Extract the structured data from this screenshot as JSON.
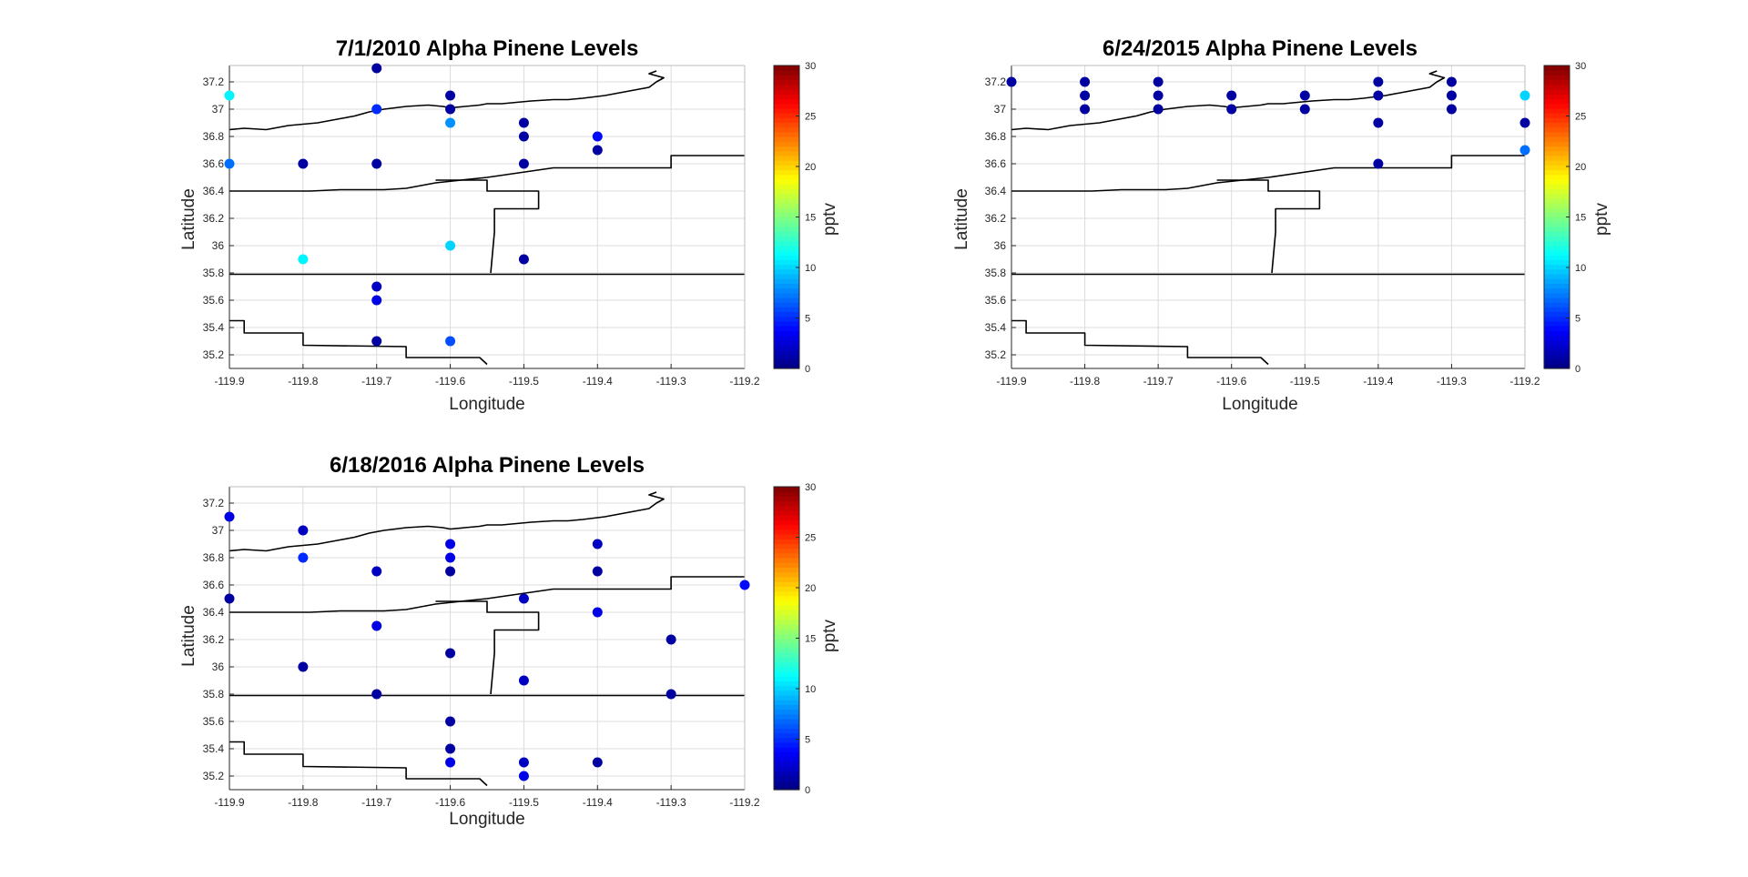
{
  "figure": {
    "background": "#ffffff",
    "colormap": "jet",
    "marker_color_range": [
      0,
      30
    ]
  },
  "chart_data": [
    {
      "type": "scatter",
      "title": "7/1/2010 Alpha Pinene Levels",
      "xlabel": "Longitude",
      "ylabel": "Latitude",
      "colorbar_label": "pptv",
      "xlim": [
        -119.9,
        -119.2
      ],
      "ylim": [
        35.1,
        37.32
      ],
      "xticks": [
        "-119.9",
        "-119.8",
        "-119.7",
        "-119.6",
        "-119.5",
        "-119.4",
        "-119.3",
        "-119.2"
      ],
      "yticks": [
        "35.2",
        "35.4",
        "35.6",
        "35.8",
        "36",
        "36.2",
        "36.4",
        "36.6",
        "36.8",
        "37",
        "37.2"
      ],
      "colorbar_ticks": [
        "0",
        "5",
        "10",
        "15",
        "20",
        "25",
        "30"
      ],
      "clim": [
        0,
        30
      ],
      "grid": true,
      "points": [
        {
          "x": -119.9,
          "y": 37.1,
          "value": 11
        },
        {
          "x": -119.9,
          "y": 36.6,
          "value": 7
        },
        {
          "x": -119.8,
          "y": 36.6,
          "value": 1
        },
        {
          "x": -119.8,
          "y": 35.9,
          "value": 11
        },
        {
          "x": -119.7,
          "y": 37.3,
          "value": 1
        },
        {
          "x": -119.7,
          "y": 37.0,
          "value": 5
        },
        {
          "x": -119.7,
          "y": 36.6,
          "value": 1
        },
        {
          "x": -119.7,
          "y": 35.7,
          "value": 2
        },
        {
          "x": -119.7,
          "y": 35.6,
          "value": 3
        },
        {
          "x": -119.7,
          "y": 35.3,
          "value": 1
        },
        {
          "x": -119.6,
          "y": 37.1,
          "value": 1
        },
        {
          "x": -119.6,
          "y": 37.0,
          "value": 1
        },
        {
          "x": -119.6,
          "y": 36.9,
          "value": 8
        },
        {
          "x": -119.6,
          "y": 36.0,
          "value": 10
        },
        {
          "x": -119.6,
          "y": 35.3,
          "value": 6
        },
        {
          "x": -119.5,
          "y": 36.9,
          "value": 1
        },
        {
          "x": -119.5,
          "y": 36.8,
          "value": 1
        },
        {
          "x": -119.5,
          "y": 36.6,
          "value": 1
        },
        {
          "x": -119.5,
          "y": 35.9,
          "value": 1
        },
        {
          "x": -119.4,
          "y": 36.8,
          "value": 4
        },
        {
          "x": -119.4,
          "y": 36.7,
          "value": 1
        }
      ]
    },
    {
      "type": "scatter",
      "title": "6/24/2015 Alpha Pinene Levels",
      "xlabel": "Longitude",
      "ylabel": "Latitude",
      "colorbar_label": "pptv",
      "xlim": [
        -119.9,
        -119.2
      ],
      "ylim": [
        35.1,
        37.32
      ],
      "xticks": [
        "-119.9",
        "-119.8",
        "-119.7",
        "-119.6",
        "-119.5",
        "-119.4",
        "-119.3",
        "-119.2"
      ],
      "yticks": [
        "35.2",
        "35.4",
        "35.6",
        "35.8",
        "36",
        "36.2",
        "36.4",
        "36.6",
        "36.8",
        "37",
        "37.2"
      ],
      "colorbar_ticks": [
        "0",
        "5",
        "10",
        "15",
        "20",
        "25",
        "30"
      ],
      "clim": [
        0,
        30
      ],
      "grid": true,
      "points": [
        {
          "x": -119.9,
          "y": 37.2,
          "value": 1
        },
        {
          "x": -119.8,
          "y": 37.2,
          "value": 1
        },
        {
          "x": -119.8,
          "y": 37.1,
          "value": 1
        },
        {
          "x": -119.8,
          "y": 37.0,
          "value": 1
        },
        {
          "x": -119.7,
          "y": 37.2,
          "value": 1
        },
        {
          "x": -119.7,
          "y": 37.1,
          "value": 1
        },
        {
          "x": -119.7,
          "y": 37.0,
          "value": 1
        },
        {
          "x": -119.6,
          "y": 37.1,
          "value": 1
        },
        {
          "x": -119.6,
          "y": 37.0,
          "value": 1
        },
        {
          "x": -119.5,
          "y": 37.1,
          "value": 1
        },
        {
          "x": -119.5,
          "y": 37.0,
          "value": 1
        },
        {
          "x": -119.4,
          "y": 37.2,
          "value": 1
        },
        {
          "x": -119.4,
          "y": 37.1,
          "value": 1
        },
        {
          "x": -119.4,
          "y": 36.9,
          "value": 1
        },
        {
          "x": -119.4,
          "y": 36.6,
          "value": 1
        },
        {
          "x": -119.3,
          "y": 37.2,
          "value": 1
        },
        {
          "x": -119.3,
          "y": 37.1,
          "value": 1
        },
        {
          "x": -119.3,
          "y": 37.0,
          "value": 1
        },
        {
          "x": -119.2,
          "y": 37.1,
          "value": 10
        },
        {
          "x": -119.2,
          "y": 36.9,
          "value": 1
        },
        {
          "x": -119.2,
          "y": 36.7,
          "value": 7
        }
      ]
    },
    {
      "type": "scatter",
      "title": "6/18/2016 Alpha Pinene Levels",
      "xlabel": "Longitude",
      "ylabel": "Latitude",
      "colorbar_label": "pptv",
      "xlim": [
        -119.9,
        -119.2
      ],
      "ylim": [
        35.1,
        37.32
      ],
      "xticks": [
        "-119.9",
        "-119.8",
        "-119.7",
        "-119.6",
        "-119.5",
        "-119.4",
        "-119.3",
        "-119.2"
      ],
      "yticks": [
        "35.2",
        "35.4",
        "35.6",
        "35.8",
        "36",
        "36.2",
        "36.4",
        "36.6",
        "36.8",
        "37",
        "37.2"
      ],
      "colorbar_ticks": [
        "0",
        "5",
        "10",
        "15",
        "20",
        "25",
        "30"
      ],
      "clim": [
        0,
        30
      ],
      "grid": true,
      "points": [
        {
          "x": -119.9,
          "y": 37.1,
          "value": 3
        },
        {
          "x": -119.9,
          "y": 36.5,
          "value": 1
        },
        {
          "x": -119.8,
          "y": 37.0,
          "value": 2
        },
        {
          "x": -119.8,
          "y": 36.8,
          "value": 5
        },
        {
          "x": -119.8,
          "y": 36.0,
          "value": 1
        },
        {
          "x": -119.7,
          "y": 36.7,
          "value": 2
        },
        {
          "x": -119.7,
          "y": 36.3,
          "value": 3
        },
        {
          "x": -119.7,
          "y": 35.8,
          "value": 1
        },
        {
          "x": -119.6,
          "y": 36.9,
          "value": 3
        },
        {
          "x": -119.6,
          "y": 36.8,
          "value": 3
        },
        {
          "x": -119.6,
          "y": 36.7,
          "value": 1
        },
        {
          "x": -119.6,
          "y": 36.1,
          "value": 1
        },
        {
          "x": -119.6,
          "y": 35.6,
          "value": 1
        },
        {
          "x": -119.6,
          "y": 35.4,
          "value": 1
        },
        {
          "x": -119.6,
          "y": 35.3,
          "value": 3
        },
        {
          "x": -119.5,
          "y": 36.5,
          "value": 2
        },
        {
          "x": -119.5,
          "y": 35.9,
          "value": 2
        },
        {
          "x": -119.5,
          "y": 35.3,
          "value": 2
        },
        {
          "x": -119.5,
          "y": 35.2,
          "value": 3
        },
        {
          "x": -119.4,
          "y": 36.9,
          "value": 2
        },
        {
          "x": -119.4,
          "y": 36.7,
          "value": 1
        },
        {
          "x": -119.4,
          "y": 36.4,
          "value": 3
        },
        {
          "x": -119.4,
          "y": 35.3,
          "value": 1
        },
        {
          "x": -119.3,
          "y": 36.2,
          "value": 1
        },
        {
          "x": -119.3,
          "y": 35.8,
          "value": 1
        },
        {
          "x": -119.2,
          "y": 36.6,
          "value": 4
        }
      ]
    }
  ],
  "map_boundaries": [
    [
      [
        -119.9,
        36.85
      ],
      [
        -119.88,
        36.86
      ],
      [
        -119.85,
        36.85
      ],
      [
        -119.82,
        36.88
      ],
      [
        -119.78,
        36.9
      ],
      [
        -119.75,
        36.93
      ],
      [
        -119.73,
        36.95
      ],
      [
        -119.71,
        36.98
      ],
      [
        -119.69,
        37.0
      ],
      [
        -119.66,
        37.02
      ],
      [
        -119.63,
        37.03
      ],
      [
        -119.61,
        37.02
      ],
      [
        -119.6,
        37.01
      ],
      [
        -119.58,
        37.02
      ],
      [
        -119.56,
        37.03
      ],
      [
        -119.55,
        37.04
      ],
      [
        -119.53,
        37.04
      ],
      [
        -119.51,
        37.05
      ],
      [
        -119.49,
        37.06
      ],
      [
        -119.46,
        37.07
      ],
      [
        -119.44,
        37.07
      ],
      [
        -119.42,
        37.08
      ],
      [
        -119.39,
        37.1
      ],
      [
        -119.37,
        37.12
      ],
      [
        -119.35,
        37.14
      ],
      [
        -119.33,
        37.16
      ],
      [
        -119.32,
        37.2
      ],
      [
        -119.31,
        37.23
      ],
      [
        -119.33,
        37.26
      ],
      [
        -119.32,
        37.28
      ]
    ],
    [
      [
        -119.9,
        36.4
      ],
      [
        -119.79,
        36.4
      ],
      [
        -119.75,
        36.41
      ],
      [
        -119.69,
        36.41
      ],
      [
        -119.66,
        36.42
      ],
      [
        -119.62,
        36.46
      ],
      [
        -119.55,
        36.5
      ],
      [
        -119.46,
        36.57
      ],
      [
        -119.3,
        36.57
      ],
      [
        -119.3,
        36.66
      ],
      [
        -119.2,
        36.66
      ]
    ],
    [
      [
        -119.62,
        36.48
      ],
      [
        -119.55,
        36.48
      ],
      [
        -119.55,
        36.4
      ],
      [
        -119.48,
        36.4
      ],
      [
        -119.48,
        36.27
      ],
      [
        -119.54,
        36.27
      ],
      [
        -119.54,
        36.1
      ],
      [
        -119.545,
        35.8
      ]
    ],
    [
      [
        -119.9,
        35.79
      ],
      [
        -119.2,
        35.79
      ]
    ],
    [
      [
        -119.9,
        35.45
      ],
      [
        -119.88,
        35.45
      ],
      [
        -119.88,
        35.36
      ],
      [
        -119.8,
        35.36
      ],
      [
        -119.8,
        35.27
      ],
      [
        -119.66,
        35.26
      ],
      [
        -119.66,
        35.18
      ],
      [
        -119.56,
        35.18
      ],
      [
        -119.55,
        35.13
      ]
    ]
  ]
}
